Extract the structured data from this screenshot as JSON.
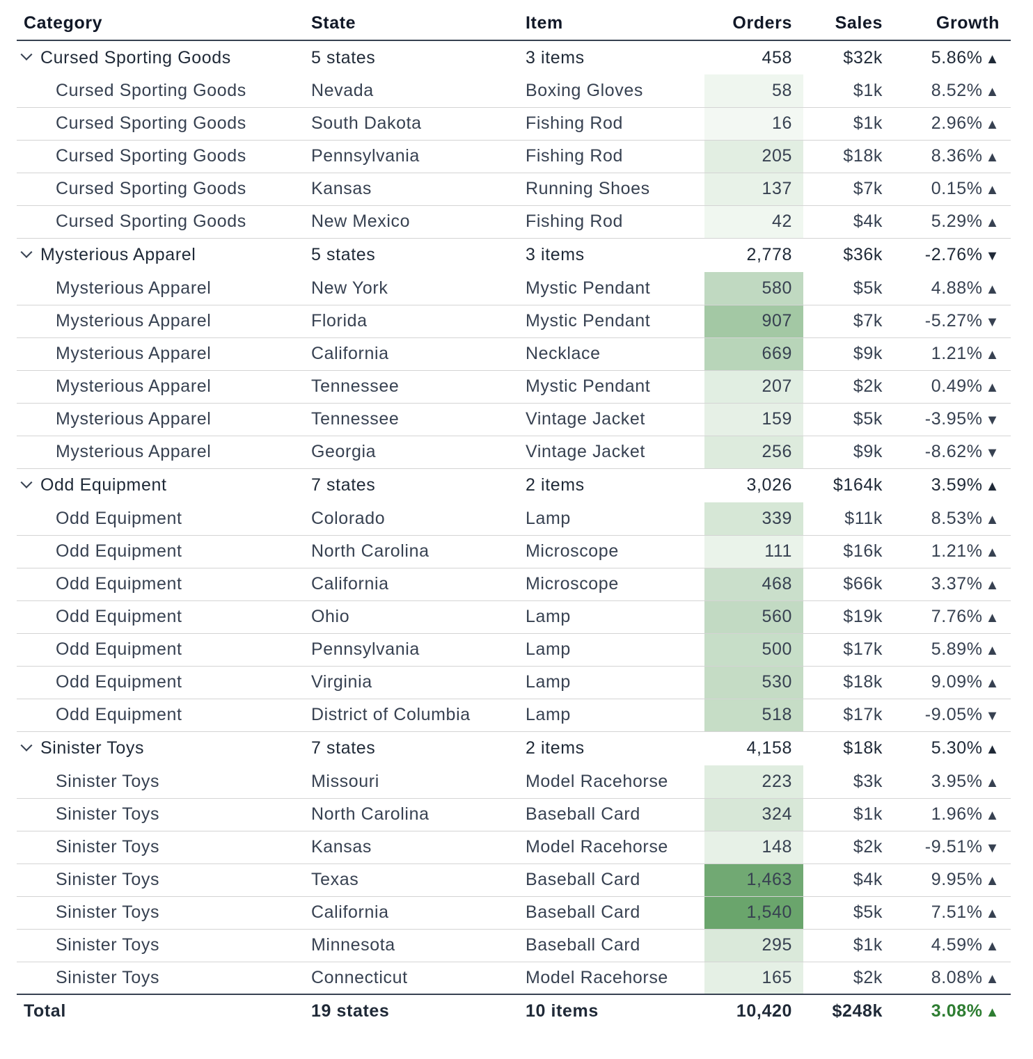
{
  "columns": {
    "category": "Category",
    "state": "State",
    "item": "Item",
    "orders": "Orders",
    "sales": "Sales",
    "growth": "Growth"
  },
  "colors": {
    "positive": "#2e7d32",
    "negative": "#c62828",
    "heat_base": "#f4f9f4",
    "heat_max": "#6aa56c"
  },
  "orders_max": 1540,
  "groups": [
    {
      "category": "Cursed Sporting Goods",
      "states": "5 states",
      "items": "3 items",
      "orders": "458",
      "sales": "$32k",
      "growth": "5.86%",
      "dir": "up",
      "rows": [
        {
          "category": "Cursed Sporting Goods",
          "state": "Nevada",
          "item": "Boxing Gloves",
          "orders": "58",
          "orders_value": 58,
          "sales": "$1k",
          "growth": "8.52%",
          "dir": "up"
        },
        {
          "category": "Cursed Sporting Goods",
          "state": "South Dakota",
          "item": "Fishing Rod",
          "orders": "16",
          "orders_value": 16,
          "sales": "$1k",
          "growth": "2.96%",
          "dir": "up"
        },
        {
          "category": "Cursed Sporting Goods",
          "state": "Pennsylvania",
          "item": "Fishing Rod",
          "orders": "205",
          "orders_value": 205,
          "sales": "$18k",
          "growth": "8.36%",
          "dir": "up"
        },
        {
          "category": "Cursed Sporting Goods",
          "state": "Kansas",
          "item": "Running Shoes",
          "orders": "137",
          "orders_value": 137,
          "sales": "$7k",
          "growth": "0.15%",
          "dir": "up"
        },
        {
          "category": "Cursed Sporting Goods",
          "state": "New Mexico",
          "item": "Fishing Rod",
          "orders": "42",
          "orders_value": 42,
          "sales": "$4k",
          "growth": "5.29%",
          "dir": "up"
        }
      ]
    },
    {
      "category": "Mysterious Apparel",
      "states": "5 states",
      "items": "3 items",
      "orders": "2,778",
      "sales": "$36k",
      "growth": "-2.76%",
      "dir": "down",
      "rows": [
        {
          "category": "Mysterious Apparel",
          "state": "New York",
          "item": "Mystic Pendant",
          "orders": "580",
          "orders_value": 580,
          "sales": "$5k",
          "growth": "4.88%",
          "dir": "up"
        },
        {
          "category": "Mysterious Apparel",
          "state": "Florida",
          "item": "Mystic Pendant",
          "orders": "907",
          "orders_value": 907,
          "sales": "$7k",
          "growth": "-5.27%",
          "dir": "down"
        },
        {
          "category": "Mysterious Apparel",
          "state": "California",
          "item": "Necklace",
          "orders": "669",
          "orders_value": 669,
          "sales": "$9k",
          "growth": "1.21%",
          "dir": "up"
        },
        {
          "category": "Mysterious Apparel",
          "state": "Tennessee",
          "item": "Mystic Pendant",
          "orders": "207",
          "orders_value": 207,
          "sales": "$2k",
          "growth": "0.49%",
          "dir": "up"
        },
        {
          "category": "Mysterious Apparel",
          "state": "Tennessee",
          "item": "Vintage Jacket",
          "orders": "159",
          "orders_value": 159,
          "sales": "$5k",
          "growth": "-3.95%",
          "dir": "down"
        },
        {
          "category": "Mysterious Apparel",
          "state": "Georgia",
          "item": "Vintage Jacket",
          "orders": "256",
          "orders_value": 256,
          "sales": "$9k",
          "growth": "-8.62%",
          "dir": "down"
        }
      ]
    },
    {
      "category": "Odd Equipment",
      "states": "7 states",
      "items": "2 items",
      "orders": "3,026",
      "sales": "$164k",
      "growth": "3.59%",
      "dir": "up",
      "rows": [
        {
          "category": "Odd Equipment",
          "state": "Colorado",
          "item": "Lamp",
          "orders": "339",
          "orders_value": 339,
          "sales": "$11k",
          "growth": "8.53%",
          "dir": "up"
        },
        {
          "category": "Odd Equipment",
          "state": "North Carolina",
          "item": "Microscope",
          "orders": "111",
          "orders_value": 111,
          "sales": "$16k",
          "growth": "1.21%",
          "dir": "up"
        },
        {
          "category": "Odd Equipment",
          "state": "California",
          "item": "Microscope",
          "orders": "468",
          "orders_value": 468,
          "sales": "$66k",
          "growth": "3.37%",
          "dir": "up"
        },
        {
          "category": "Odd Equipment",
          "state": "Ohio",
          "item": "Lamp",
          "orders": "560",
          "orders_value": 560,
          "sales": "$19k",
          "growth": "7.76%",
          "dir": "up"
        },
        {
          "category": "Odd Equipment",
          "state": "Pennsylvania",
          "item": "Lamp",
          "orders": "500",
          "orders_value": 500,
          "sales": "$17k",
          "growth": "5.89%",
          "dir": "up"
        },
        {
          "category": "Odd Equipment",
          "state": "Virginia",
          "item": "Lamp",
          "orders": "530",
          "orders_value": 530,
          "sales": "$18k",
          "growth": "9.09%",
          "dir": "up"
        },
        {
          "category": "Odd Equipment",
          "state": "District of Columbia",
          "item": "Lamp",
          "orders": "518",
          "orders_value": 518,
          "sales": "$17k",
          "growth": "-9.05%",
          "dir": "down"
        }
      ]
    },
    {
      "category": "Sinister Toys",
      "states": "7 states",
      "items": "2 items",
      "orders": "4,158",
      "sales": "$18k",
      "growth": "5.30%",
      "dir": "up",
      "rows": [
        {
          "category": "Sinister Toys",
          "state": "Missouri",
          "item": "Model Racehorse",
          "orders": "223",
          "orders_value": 223,
          "sales": "$3k",
          "growth": "3.95%",
          "dir": "up"
        },
        {
          "category": "Sinister Toys",
          "state": "North Carolina",
          "item": "Baseball Card",
          "orders": "324",
          "orders_value": 324,
          "sales": "$1k",
          "growth": "1.96%",
          "dir": "up"
        },
        {
          "category": "Sinister Toys",
          "state": "Kansas",
          "item": "Model Racehorse",
          "orders": "148",
          "orders_value": 148,
          "sales": "$2k",
          "growth": "-9.51%",
          "dir": "down"
        },
        {
          "category": "Sinister Toys",
          "state": "Texas",
          "item": "Baseball Card",
          "orders": "1,463",
          "orders_value": 1463,
          "sales": "$4k",
          "growth": "9.95%",
          "dir": "up"
        },
        {
          "category": "Sinister Toys",
          "state": "California",
          "item": "Baseball Card",
          "orders": "1,540",
          "orders_value": 1540,
          "sales": "$5k",
          "growth": "7.51%",
          "dir": "up"
        },
        {
          "category": "Sinister Toys",
          "state": "Minnesota",
          "item": "Baseball Card",
          "orders": "295",
          "orders_value": 295,
          "sales": "$1k",
          "growth": "4.59%",
          "dir": "up"
        },
        {
          "category": "Sinister Toys",
          "state": "Connecticut",
          "item": "Model Racehorse",
          "orders": "165",
          "orders_value": 165,
          "sales": "$2k",
          "growth": "8.08%",
          "dir": "up"
        }
      ]
    }
  ],
  "total": {
    "label": "Total",
    "states": "19 states",
    "items": "10 items",
    "orders": "10,420",
    "sales": "$248k",
    "growth": "3.08%",
    "dir": "up"
  }
}
